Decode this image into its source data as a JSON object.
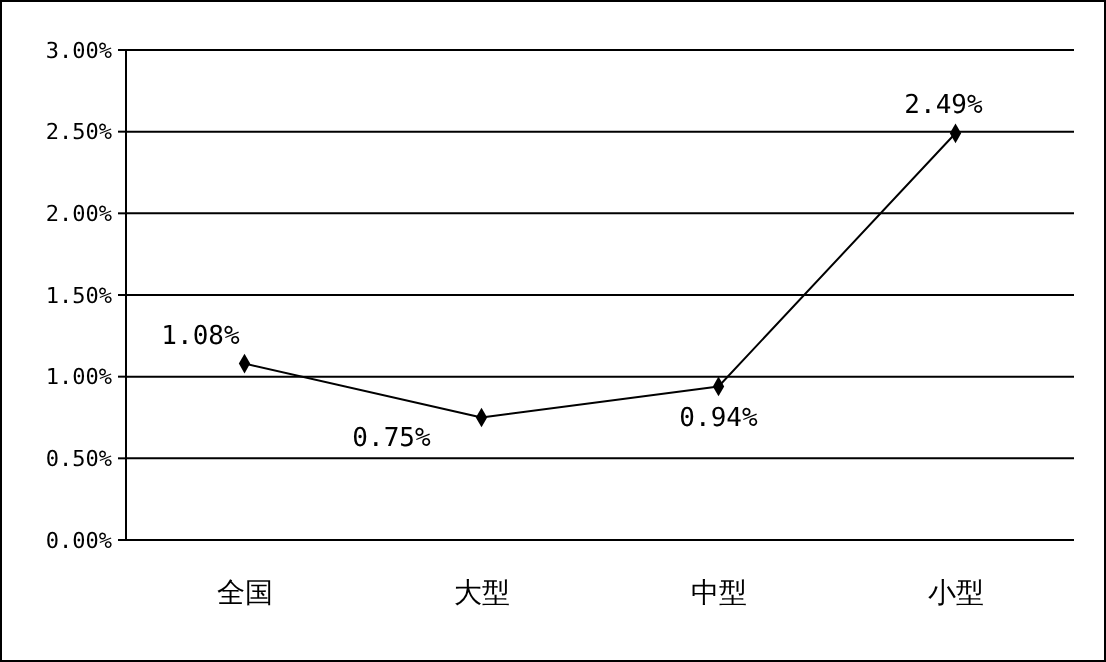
{
  "chart_data": {
    "type": "line",
    "categories": [
      "全国",
      "大型",
      "中型",
      "小型"
    ],
    "series": [
      {
        "color": "#000000",
        "values": [
          1.08,
          0.75,
          0.94,
          2.49
        ],
        "value_labels": [
          "1.08%",
          "0.75%",
          "0.94%",
          "2.49%"
        ]
      }
    ],
    "ylim": [
      0,
      3
    ],
    "yticks": [
      {
        "value": 0,
        "label": "0.00%"
      },
      {
        "value": 0.5,
        "label": "0.50%"
      },
      {
        "value": 1,
        "label": "1.00%"
      },
      {
        "value": 1.5,
        "label": "1.50%"
      },
      {
        "value": 2,
        "label": "2.00%"
      },
      {
        "value": 2.5,
        "label": "2.50%"
      },
      {
        "value": 3,
        "label": "3.00%"
      }
    ],
    "grid": "y",
    "marker": "diamond",
    "line_style": "solid"
  }
}
